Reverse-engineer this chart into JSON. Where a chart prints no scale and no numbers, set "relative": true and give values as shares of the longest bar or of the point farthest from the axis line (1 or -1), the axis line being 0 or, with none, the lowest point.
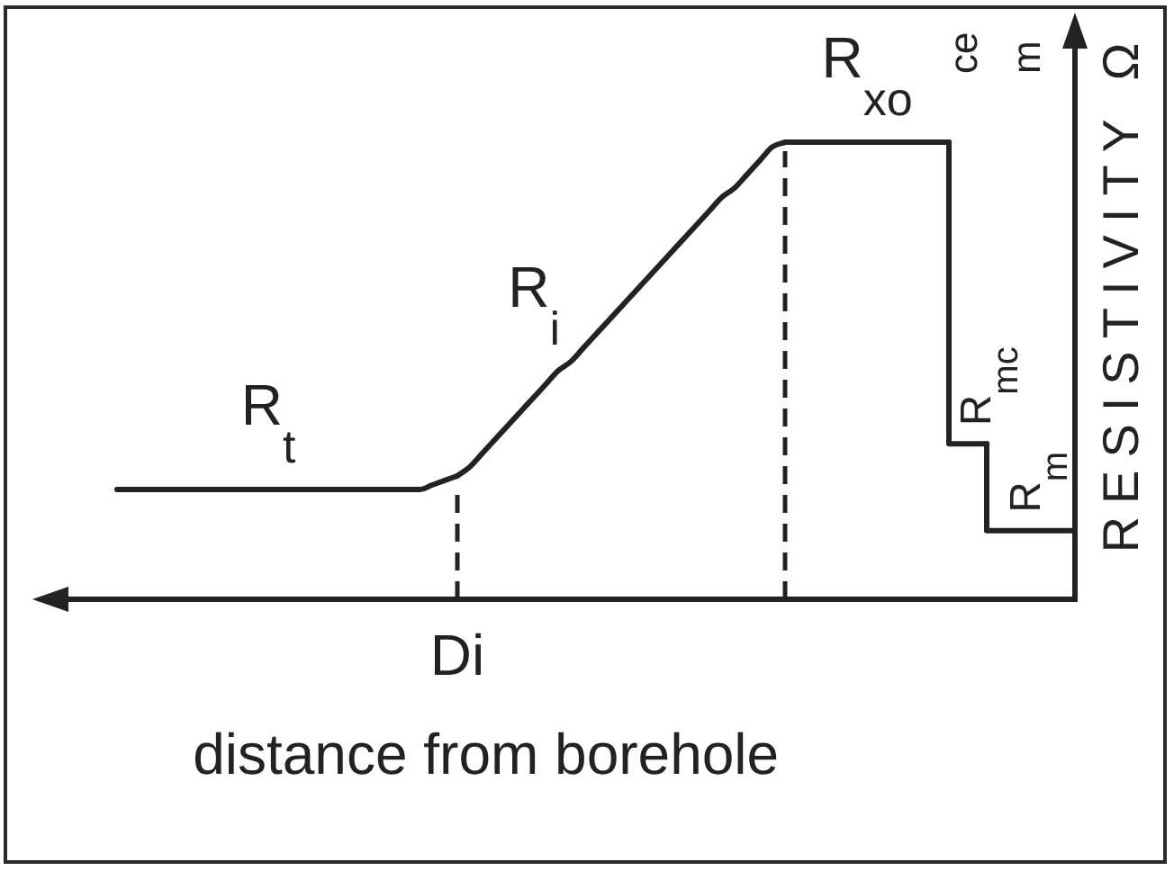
{
  "chart_data": {
    "type": "line",
    "relative": true,
    "xlabel": "distance from borehole",
    "ylabel": "RESISTIVITY Ω",
    "categories": [
      null,
      null,
      null,
      null,
      null,
      null,
      null,
      null,
      null,
      null,
      null,
      null,
      null,
      null,
      null,
      null,
      null,
      null,
      null,
      null,
      null,
      null,
      null,
      null,
      null,
      null,
      null,
      null,
      null,
      null,
      null,
      null,
      null,
      null,
      null,
      null,
      null,
      null,
      null,
      null,
      null,
      null,
      null,
      null,
      null,
      null,
      null,
      null,
      null,
      null,
      null,
      null,
      null,
      null,
      null,
      null,
      null,
      null,
      null,
      null,
      null,
      null,
      null,
      null,
      null,
      null,
      null,
      null,
      null,
      null,
      null,
      null,
      null,
      null,
      null,
      null,
      null
    ],
    "series": [
      {
        "name": "R$_{t}$",
        "color": "#222222",
        "values": [
          0.24,
          0.24,
          0.24,
          0.24,
          0.24,
          0.24,
          0.24,
          0.24,
          0.24,
          0.24,
          0.24,
          0.24,
          0.24,
          0.24,
          0.24,
          0.24,
          0.24,
          0.24,
          0.24,
          0.24,
          0.24,
          0.24,
          0.24,
          0.24,
          0.24,
          0.25,
          0.26,
          0.27,
          null,
          null,
          null,
          null,
          null,
          null,
          null,
          null,
          null,
          null,
          null,
          null,
          null,
          null,
          null,
          null,
          null,
          null,
          null,
          null,
          null,
          null,
          null,
          null,
          null,
          null,
          null,
          null,
          null,
          null,
          null,
          null,
          null,
          null,
          null,
          null,
          null,
          null,
          null,
          null,
          null,
          null,
          null,
          null,
          null,
          null,
          null,
          null,
          null
        ]
      },
      {
        "name": "R$_{i}$",
        "color": "#222222",
        "values": [
          null,
          null,
          null,
          null,
          null,
          null,
          null,
          null,
          null,
          null,
          null,
          null,
          null,
          null,
          null,
          null,
          null,
          null,
          null,
          null,
          null,
          null,
          null,
          null,
          null,
          null,
          null,
          0.27,
          0.29,
          0.32,
          0.35,
          0.38,
          0.41,
          0.44,
          0.47,
          0.5,
          0.52,
          0.55,
          0.58,
          0.61,
          0.64,
          0.67,
          0.7,
          0.73,
          0.76,
          0.79,
          0.82,
          0.85,
          0.88,
          0.9,
          0.93,
          0.96,
          0.99,
          1,
          null,
          null,
          null,
          null,
          null,
          null,
          null,
          null,
          null,
          null,
          null,
          null,
          null,
          null,
          null,
          null,
          null,
          null,
          null,
          null,
          null,
          null,
          null
        ]
      },
      {
        "name": "R$_{xo}$",
        "color": "#222222",
        "values": [
          null,
          null,
          null,
          null,
          null,
          null,
          null,
          null,
          null,
          null,
          null,
          null,
          null,
          null,
          null,
          null,
          null,
          null,
          null,
          null,
          null,
          null,
          null,
          null,
          null,
          null,
          null,
          null,
          null,
          null,
          null,
          null,
          null,
          null,
          null,
          null,
          null,
          null,
          null,
          null,
          null,
          null,
          null,
          null,
          null,
          null,
          null,
          null,
          null,
          null,
          null,
          null,
          null,
          1,
          1,
          1,
          1,
          1,
          1,
          1,
          1,
          1,
          1,
          1,
          1,
          1,
          1,
          null,
          null,
          null,
          null,
          null,
          null,
          null,
          null,
          null,
          null
        ]
      },
      {
        "name": "R$_{mc}$",
        "type": "step",
        "color": "#222222",
        "values": [
          null,
          null,
          null,
          null,
          null,
          null,
          null,
          null,
          null,
          null,
          null,
          null,
          null,
          null,
          null,
          null,
          null,
          null,
          null,
          null,
          null,
          null,
          null,
          null,
          null,
          null,
          null,
          null,
          null,
          null,
          null,
          null,
          null,
          null,
          null,
          null,
          null,
          null,
          null,
          null,
          null,
          null,
          null,
          null,
          null,
          null,
          null,
          null,
          null,
          null,
          null,
          null,
          null,
          null,
          null,
          null,
          null,
          null,
          null,
          null,
          null,
          null,
          null,
          null,
          null,
          null,
          1,
          0.34,
          0.34,
          0.34,
          null,
          null,
          null,
          null,
          null,
          null,
          null
        ]
      },
      {
        "name": "R$_{m}$",
        "type": "step",
        "color": "#222222",
        "values": [
          null,
          null,
          null,
          null,
          null,
          null,
          null,
          null,
          null,
          null,
          null,
          null,
          null,
          null,
          null,
          null,
          null,
          null,
          null,
          null,
          null,
          null,
          null,
          null,
          null,
          null,
          null,
          null,
          null,
          null,
          null,
          null,
          null,
          null,
          null,
          null,
          null,
          null,
          null,
          null,
          null,
          null,
          null,
          null,
          null,
          null,
          null,
          null,
          null,
          null,
          null,
          null,
          null,
          null,
          null,
          null,
          null,
          null,
          null,
          null,
          null,
          null,
          null,
          null,
          null,
          null,
          null,
          null,
          null,
          0.34,
          0.15,
          0.15,
          0.15,
          0.15,
          0.15,
          0.15,
          0.15
        ]
      }
    ],
    "annotations": [
      "Di",
      "ce",
      "m"
    ]
  }
}
